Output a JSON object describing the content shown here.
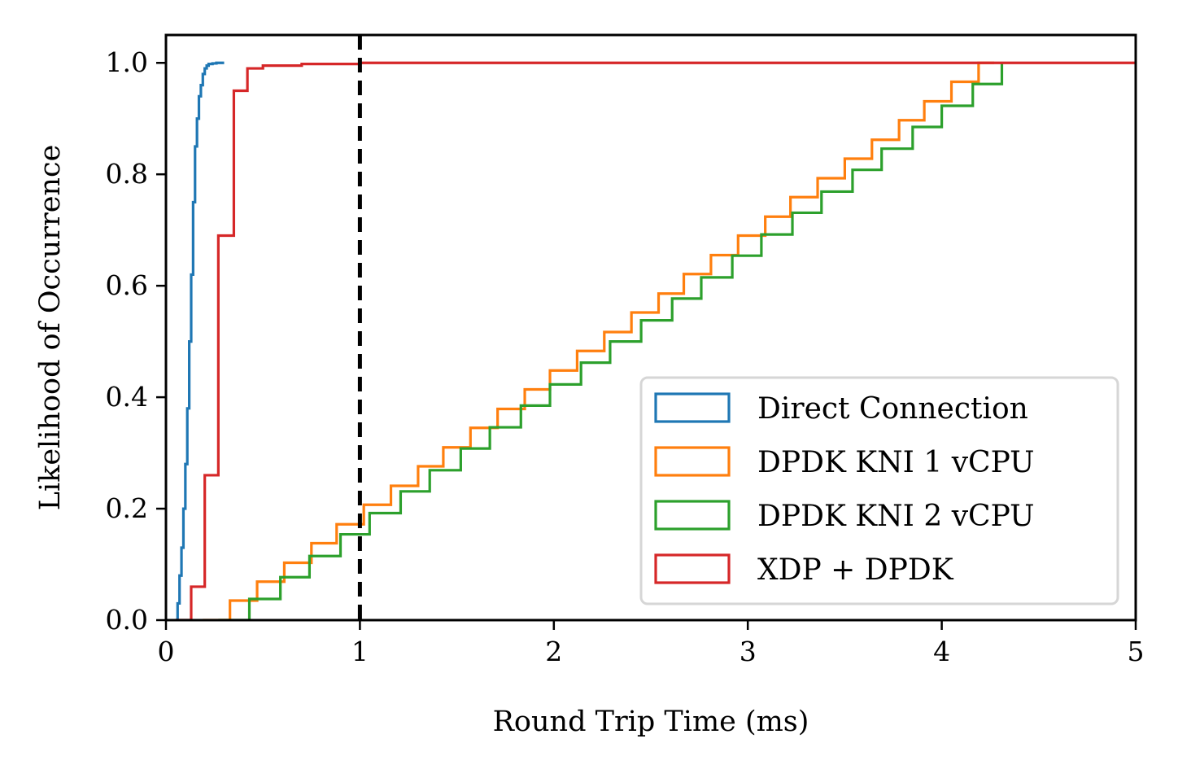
{
  "chart_data": {
    "type": "line",
    "title": "",
    "xlabel": "Round Trip Time (ms)",
    "ylabel": "Likelihood of Occurrence",
    "xlim": [
      0,
      5
    ],
    "ylim": [
      0.0,
      1.05
    ],
    "x_ticks": [
      0,
      1,
      2,
      3,
      4,
      5
    ],
    "y_ticks": [
      0.0,
      0.2,
      0.4,
      0.6,
      0.8,
      1.0
    ],
    "x_tick_labels": [
      "0",
      "1",
      "2",
      "3",
      "4",
      "5"
    ],
    "y_tick_labels": [
      "0.0",
      "0.2",
      "0.4",
      "0.6",
      "0.8",
      "1.0"
    ],
    "grid": false,
    "legend_position": "lower-right",
    "reference_line": {
      "x": 1.0,
      "style": "dashed",
      "color": "#000000"
    },
    "series": [
      {
        "name": "Direct Connection",
        "color": "#1f77b4",
        "step": true,
        "x": [
          0.05,
          0.06,
          0.07,
          0.08,
          0.09,
          0.1,
          0.11,
          0.12,
          0.13,
          0.14,
          0.15,
          0.16,
          0.17,
          0.18,
          0.19,
          0.2,
          0.21,
          0.22,
          0.24,
          0.26,
          0.3
        ],
        "y": [
          0.0,
          0.03,
          0.08,
          0.13,
          0.2,
          0.28,
          0.38,
          0.5,
          0.62,
          0.75,
          0.85,
          0.9,
          0.94,
          0.96,
          0.98,
          0.99,
          0.995,
          0.998,
          0.999,
          1.0,
          1.0
        ]
      },
      {
        "name": "DPDK KNI 1 vCPU",
        "color": "#ff7f0e",
        "step": true,
        "x": [
          0.19,
          0.33,
          0.47,
          0.61,
          0.75,
          0.88,
          1.02,
          1.16,
          1.3,
          1.43,
          1.57,
          1.71,
          1.85,
          1.98,
          2.12,
          2.26,
          2.4,
          2.54,
          2.67,
          2.81,
          2.95,
          3.09,
          3.22,
          3.36,
          3.5,
          3.64,
          3.78,
          3.91,
          4.05,
          4.19,
          4.27
        ],
        "y": [
          0.0,
          0.035,
          0.069,
          0.103,
          0.138,
          0.172,
          0.207,
          0.241,
          0.276,
          0.31,
          0.345,
          0.379,
          0.414,
          0.448,
          0.483,
          0.517,
          0.552,
          0.586,
          0.621,
          0.655,
          0.69,
          0.724,
          0.759,
          0.793,
          0.828,
          0.862,
          0.897,
          0.931,
          0.966,
          1.0,
          1.0
        ]
      },
      {
        "name": "DPDK KNI 2 vCPU",
        "color": "#2ca02c",
        "step": true,
        "x": [
          0.27,
          0.43,
          0.59,
          0.74,
          0.9,
          1.05,
          1.21,
          1.36,
          1.52,
          1.67,
          1.83,
          1.98,
          2.14,
          2.29,
          2.45,
          2.61,
          2.76,
          2.92,
          3.07,
          3.23,
          3.38,
          3.54,
          3.69,
          3.85,
          4.0,
          4.16,
          4.31
        ],
        "y": [
          0.0,
          0.038,
          0.077,
          0.115,
          0.154,
          0.192,
          0.231,
          0.269,
          0.308,
          0.346,
          0.385,
          0.423,
          0.462,
          0.5,
          0.538,
          0.577,
          0.615,
          0.654,
          0.692,
          0.731,
          0.769,
          0.808,
          0.846,
          0.885,
          0.923,
          0.962,
          1.0
        ]
      },
      {
        "name": "XDP + DPDK",
        "color": "#d62728",
        "step": true,
        "x": [
          0.05,
          0.13,
          0.2,
          0.27,
          0.35,
          0.42,
          0.5,
          0.7,
          1.0,
          5.0
        ],
        "y": [
          0.0,
          0.06,
          0.26,
          0.69,
          0.95,
          0.99,
          0.995,
          0.998,
          1.0,
          1.0
        ]
      }
    ]
  }
}
